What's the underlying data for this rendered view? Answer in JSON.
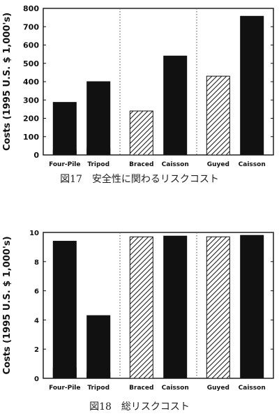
{
  "chart_data": [
    {
      "type": "bar",
      "categories": [
        "Four-Pile",
        "Tripod",
        "Braced",
        "Caisson",
        "Guyed",
        "Caisson"
      ],
      "series": [
        {
          "values": [
            25,
            35,
            240,
            null,
            430,
            null
          ],
          "pattern": "hatched"
        },
        {
          "values": [
            287,
            400,
            null,
            540,
            null,
            757
          ],
          "pattern": "solid"
        }
      ],
      "ylabel": "Costs (1995 U.S. $ 1,000's)",
      "ylim": [
        0,
        800
      ],
      "yticks": [
        "0",
        "100",
        "200",
        "300",
        "400",
        "500",
        "600",
        "700",
        "800"
      ],
      "caption": "図17　安全性に関わるリスクコスト",
      "grid": false
    },
    {
      "type": "bar",
      "categories": [
        "Four-Pile",
        "Tripod",
        "Braced",
        "Caisson",
        "Guyed",
        "Caisson"
      ],
      "series": [
        {
          "values": [
            0.7,
            0.4,
            9.7,
            null,
            9.7,
            null
          ],
          "pattern": "hatched"
        },
        {
          "values": [
            9.4,
            4.3,
            null,
            9.75,
            null,
            9.8
          ],
          "pattern": "solid"
        }
      ],
      "ylabel": "Costs (1995 U.S. $ 1,000's)",
      "ylim": [
        0,
        10
      ],
      "yticks": [
        "0",
        "2",
        "4",
        "6",
        "8",
        "10"
      ],
      "caption": "図18　総リスクコスト",
      "grid": false
    }
  ],
  "colors": {
    "solid_bar": "#111111",
    "hatch": "#222222",
    "axis": "#111111",
    "divider": "#555555"
  }
}
